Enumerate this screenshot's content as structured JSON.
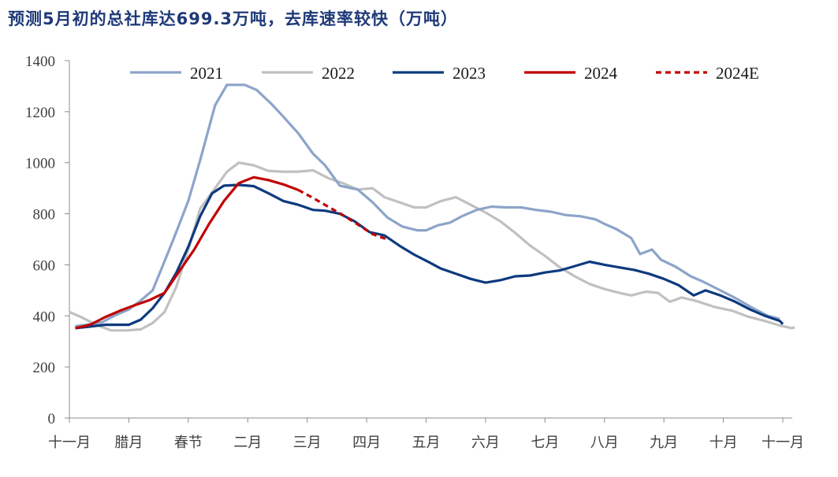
{
  "chart_data": {
    "type": "line",
    "title": "预测5月初的总社库达699.3万吨，去库速率较快（万吨）",
    "xlabel": "",
    "ylabel": "",
    "ylim": [
      0,
      1400
    ],
    "yticks": [
      0,
      200,
      400,
      600,
      800,
      1000,
      1200,
      1400
    ],
    "x_domain": [
      0,
      12
    ],
    "x_ticks": [
      {
        "label": "十一月",
        "x": 0
      },
      {
        "label": "腊月",
        "x": 1
      },
      {
        "label": "春节",
        "x": 2
      },
      {
        "label": "二月",
        "x": 3
      },
      {
        "label": "三月",
        "x": 4
      },
      {
        "label": "四月",
        "x": 5
      },
      {
        "label": "五月",
        "x": 6
      },
      {
        "label": "六月",
        "x": 7
      },
      {
        "label": "七月",
        "x": 8
      },
      {
        "label": "八月",
        "x": 9
      },
      {
        "label": "九月",
        "x": 10
      },
      {
        "label": "十月",
        "x": 11
      },
      {
        "label": "十一月",
        "x": 12
      }
    ],
    "legend_position": "top",
    "series": [
      {
        "name": "2021",
        "color": "#8da4c9",
        "dashed": false,
        "points": [
          [
            0.1,
            360
          ],
          [
            0.3,
            365
          ],
          [
            0.55,
            375
          ],
          [
            0.75,
            400
          ],
          [
            1.0,
            425
          ],
          [
            1.2,
            460
          ],
          [
            1.4,
            500
          ],
          [
            1.55,
            585
          ],
          [
            1.75,
            700
          ],
          [
            2.0,
            850
          ],
          [
            2.2,
            1010
          ],
          [
            2.45,
            1225
          ],
          [
            2.65,
            1305
          ],
          [
            2.95,
            1305
          ],
          [
            3.15,
            1285
          ],
          [
            3.4,
            1230
          ],
          [
            3.6,
            1180
          ],
          [
            3.85,
            1115
          ],
          [
            4.1,
            1035
          ],
          [
            4.3,
            990
          ],
          [
            4.55,
            910
          ],
          [
            4.85,
            895
          ],
          [
            5.1,
            845
          ],
          [
            5.35,
            785
          ],
          [
            5.6,
            750
          ],
          [
            5.85,
            735
          ],
          [
            6.0,
            735
          ],
          [
            6.2,
            755
          ],
          [
            6.4,
            765
          ],
          [
            6.6,
            790
          ],
          [
            6.85,
            815
          ],
          [
            7.1,
            828
          ],
          [
            7.35,
            825
          ],
          [
            7.6,
            825
          ],
          [
            7.85,
            815
          ],
          [
            8.1,
            808
          ],
          [
            8.35,
            795
          ],
          [
            8.6,
            790
          ],
          [
            8.85,
            778
          ],
          [
            9.0,
            760
          ],
          [
            9.2,
            740
          ],
          [
            9.45,
            705
          ],
          [
            9.6,
            642
          ],
          [
            9.8,
            660
          ],
          [
            9.95,
            620
          ],
          [
            10.2,
            592
          ],
          [
            10.45,
            555
          ],
          [
            10.65,
            535
          ],
          [
            10.95,
            500
          ],
          [
            11.2,
            470
          ],
          [
            11.5,
            430
          ],
          [
            11.75,
            400
          ],
          [
            11.95,
            388
          ]
        ]
      },
      {
        "name": "2022",
        "color": "#c0c0c0",
        "dashed": false,
        "points": [
          [
            0.0,
            415
          ],
          [
            0.2,
            395
          ],
          [
            0.45,
            365
          ],
          [
            0.7,
            343
          ],
          [
            0.95,
            343
          ],
          [
            1.2,
            347
          ],
          [
            1.4,
            372
          ],
          [
            1.6,
            415
          ],
          [
            1.8,
            515
          ],
          [
            2.0,
            660
          ],
          [
            2.2,
            820
          ],
          [
            2.45,
            900
          ],
          [
            2.65,
            965
          ],
          [
            2.85,
            1000
          ],
          [
            3.1,
            990
          ],
          [
            3.35,
            968
          ],
          [
            3.6,
            965
          ],
          [
            3.85,
            965
          ],
          [
            4.1,
            970
          ],
          [
            4.35,
            940
          ],
          [
            4.6,
            920
          ],
          [
            4.85,
            895
          ],
          [
            5.1,
            900
          ],
          [
            5.3,
            865
          ],
          [
            5.55,
            845
          ],
          [
            5.8,
            825
          ],
          [
            6.0,
            825
          ],
          [
            6.25,
            850
          ],
          [
            6.5,
            865
          ],
          [
            6.75,
            835
          ],
          [
            7.0,
            805
          ],
          [
            7.25,
            770
          ],
          [
            7.5,
            725
          ],
          [
            7.75,
            675
          ],
          [
            8.0,
            635
          ],
          [
            8.25,
            590
          ],
          [
            8.5,
            555
          ],
          [
            8.75,
            525
          ],
          [
            9.0,
            505
          ],
          [
            9.25,
            490
          ],
          [
            9.45,
            480
          ],
          [
            9.7,
            495
          ],
          [
            9.9,
            490
          ],
          [
            10.1,
            455
          ],
          [
            10.3,
            472
          ],
          [
            10.55,
            458
          ],
          [
            10.85,
            435
          ],
          [
            11.15,
            420
          ],
          [
            11.4,
            398
          ],
          [
            11.7,
            380
          ],
          [
            11.95,
            362
          ],
          [
            12.15,
            352
          ],
          [
            12.2,
            355
          ]
        ]
      },
      {
        "name": "2023",
        "color": "#0d3a7e",
        "dashed": false,
        "points": [
          [
            0.1,
            352
          ],
          [
            0.35,
            358
          ],
          [
            0.6,
            365
          ],
          [
            0.85,
            365
          ],
          [
            1.0,
            365
          ],
          [
            1.2,
            385
          ],
          [
            1.4,
            430
          ],
          [
            1.6,
            490
          ],
          [
            1.8,
            570
          ],
          [
            2.0,
            670
          ],
          [
            2.2,
            790
          ],
          [
            2.4,
            880
          ],
          [
            2.6,
            910
          ],
          [
            2.85,
            913
          ],
          [
            3.1,
            908
          ],
          [
            3.35,
            880
          ],
          [
            3.6,
            850
          ],
          [
            3.85,
            835
          ],
          [
            4.1,
            815
          ],
          [
            4.3,
            812
          ],
          [
            4.55,
            800
          ],
          [
            4.8,
            770
          ],
          [
            5.05,
            728
          ],
          [
            5.3,
            715
          ],
          [
            5.55,
            675
          ],
          [
            5.8,
            640
          ],
          [
            6.05,
            610
          ],
          [
            6.25,
            585
          ],
          [
            6.5,
            565
          ],
          [
            6.75,
            545
          ],
          [
            7.0,
            530
          ],
          [
            7.25,
            540
          ],
          [
            7.5,
            555
          ],
          [
            7.75,
            558
          ],
          [
            8.0,
            570
          ],
          [
            8.25,
            578
          ],
          [
            8.5,
            595
          ],
          [
            8.75,
            612
          ],
          [
            9.0,
            600
          ],
          [
            9.25,
            590
          ],
          [
            9.5,
            580
          ],
          [
            9.75,
            565
          ],
          [
            10.0,
            545
          ],
          [
            10.25,
            520
          ],
          [
            10.5,
            480
          ],
          [
            10.7,
            500
          ],
          [
            10.95,
            480
          ],
          [
            11.2,
            455
          ],
          [
            11.45,
            425
          ],
          [
            11.7,
            400
          ],
          [
            11.95,
            380
          ],
          [
            12.0,
            368
          ]
        ]
      },
      {
        "name": "2024",
        "color": "#c00000",
        "dashed": false,
        "points": [
          [
            0.1,
            352
          ],
          [
            0.35,
            365
          ],
          [
            0.6,
            395
          ],
          [
            0.85,
            420
          ],
          [
            1.1,
            442
          ],
          [
            1.35,
            462
          ],
          [
            1.6,
            490
          ],
          [
            1.85,
            575
          ],
          [
            2.1,
            660
          ],
          [
            2.35,
            760
          ],
          [
            2.6,
            850
          ],
          [
            2.85,
            920
          ],
          [
            3.1,
            943
          ],
          [
            3.35,
            932
          ],
          [
            3.6,
            915
          ],
          [
            3.85,
            893
          ]
        ]
      },
      {
        "name": "2024E",
        "color": "#c00000",
        "dashed": true,
        "points": [
          [
            3.85,
            893
          ],
          [
            4.1,
            862
          ],
          [
            4.35,
            828
          ],
          [
            4.6,
            795
          ],
          [
            4.85,
            758
          ],
          [
            5.1,
            720
          ],
          [
            5.35,
            699.3
          ]
        ]
      }
    ]
  }
}
